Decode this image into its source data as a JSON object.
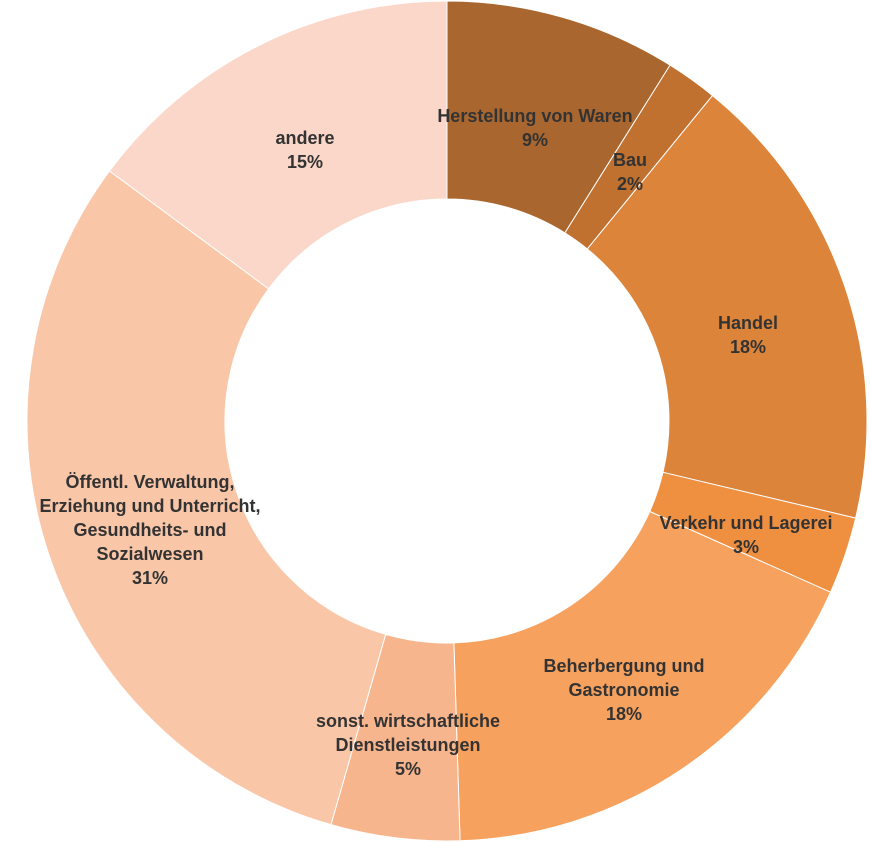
{
  "chart_data": {
    "type": "donut",
    "categories": [
      "Herstellung von Waren",
      "Bau",
      "Handel",
      "Verkehr und Lagerei",
      "Beherbergung und Gastronomie",
      "sonst. wirtschaftliche Dienstleistungen",
      "Öffentl. Verwaltung, Erziehung und Unterricht, Gesundheits- und Sozialwesen",
      "andere"
    ],
    "values": [
      9,
      2,
      18,
      3,
      18,
      5,
      31,
      15
    ],
    "value_labels": [
      "9%",
      "2%",
      "18%",
      "3%",
      "18%",
      "5%",
      "31%",
      "15%"
    ],
    "colors": [
      "#a9662e",
      "#c0702f",
      "#dc843a",
      "#ef8f40",
      "#f6a15e",
      "#f7b58e",
      "#f9c6a8",
      "#fad7c8"
    ]
  }
}
